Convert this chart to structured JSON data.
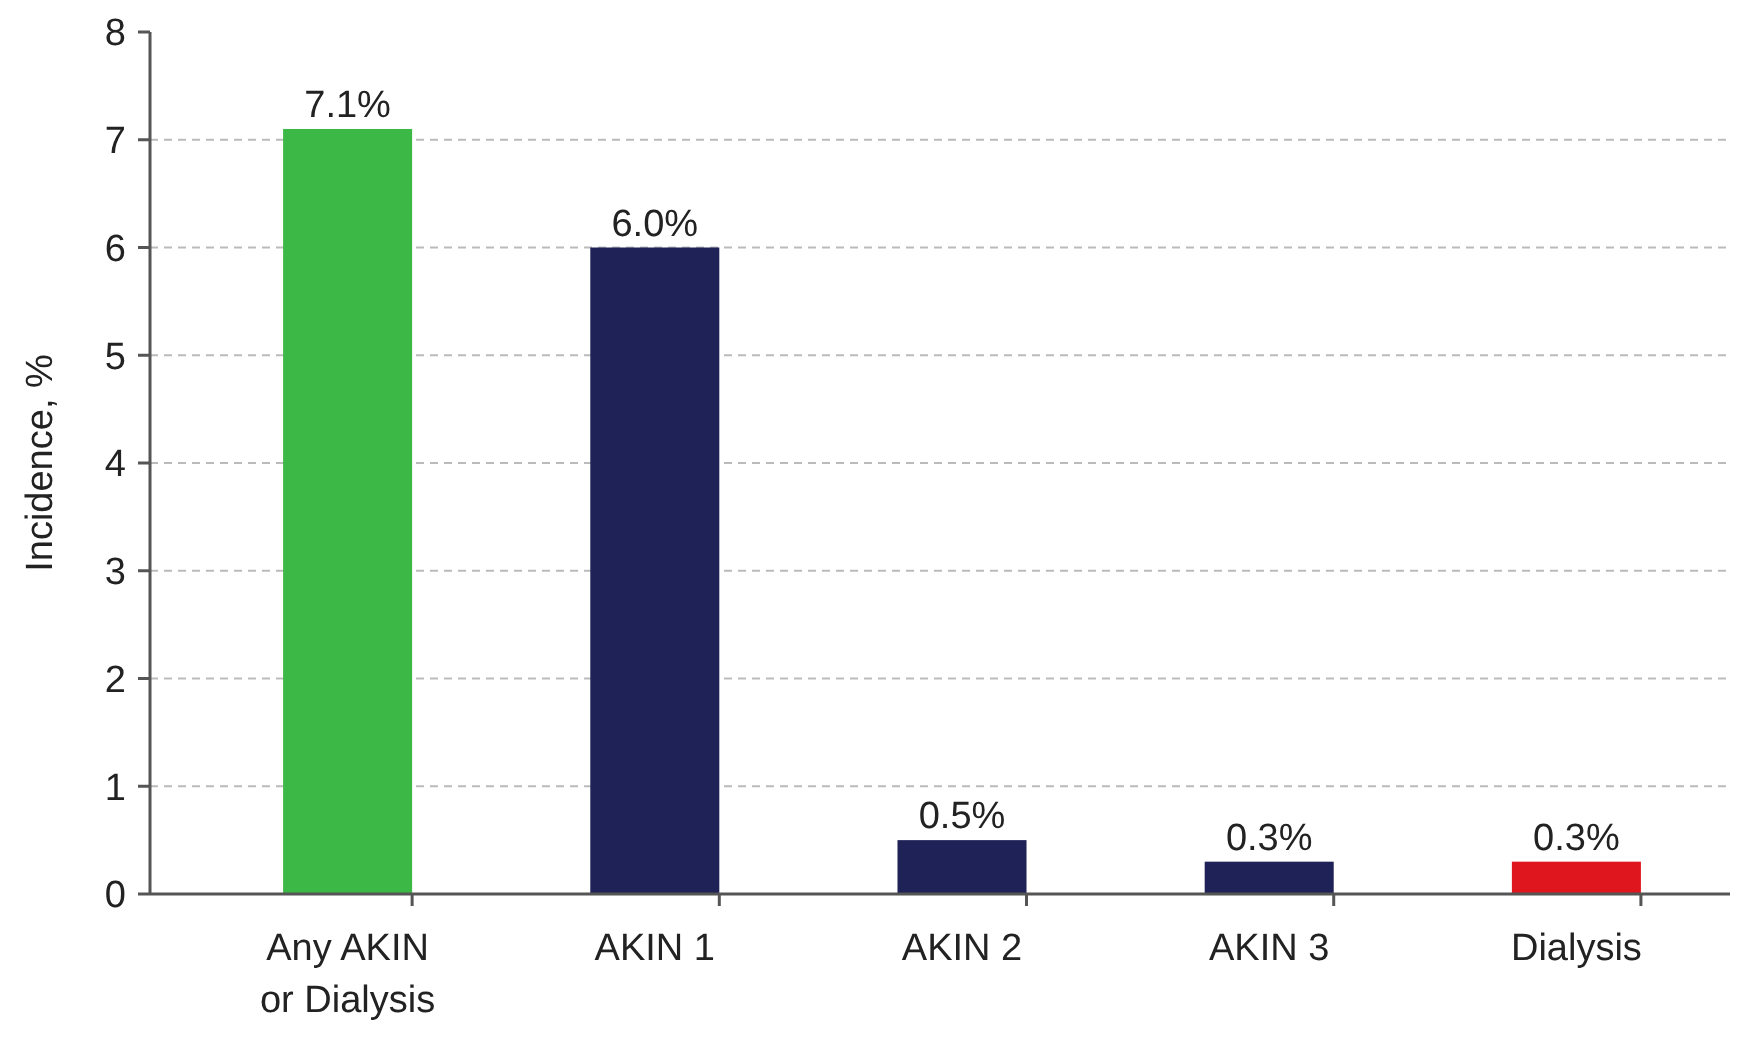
{
  "chart_data": {
    "type": "bar",
    "ylabel": "Incidence, %",
    "categories": [
      "Any AKIN\nor Dialysis",
      "AKIN 1",
      "AKIN 2",
      "AKIN 3",
      "Dialysis"
    ],
    "values": [
      7.1,
      6.0,
      0.5,
      0.3,
      0.3
    ],
    "value_labels": [
      "7.1%",
      "6.0%",
      "0.5%",
      "0.3%",
      "0.3%"
    ],
    "colors": [
      "#3cb846",
      "#1f2257",
      "#1f2257",
      "#1f2257",
      "#e0161e"
    ],
    "ylim": [
      0,
      8
    ],
    "yticks": [
      0,
      1,
      2,
      3,
      4,
      5,
      6,
      7,
      8
    ],
    "grid": "y"
  }
}
